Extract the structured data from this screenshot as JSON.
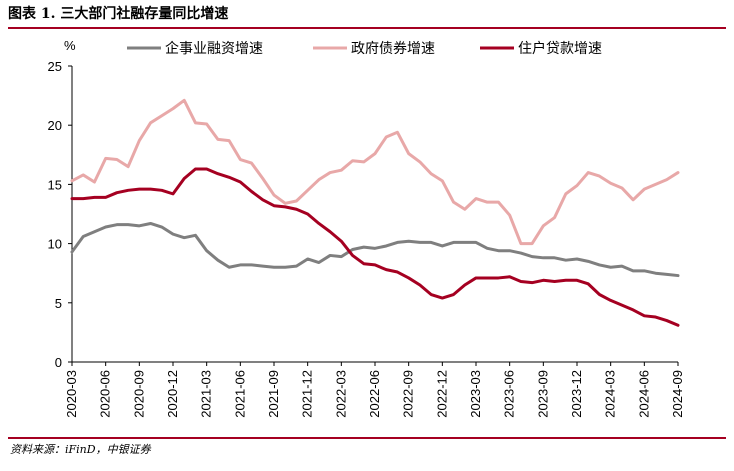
{
  "header": {
    "title": "图表 1. 三大部门社融存量同比增速"
  },
  "footer": {
    "source": "资料来源：iFinD，中银证券"
  },
  "chart_data": {
    "type": "line",
    "title": "图表 1. 三大部门社融存量同比增速",
    "ylabel": "%",
    "ylim": [
      0,
      25
    ],
    "yticks": [
      0,
      5,
      10,
      15,
      20,
      25
    ],
    "grid": false,
    "legend_position": "top",
    "x": [
      "2020-03",
      "2020-04",
      "2020-05",
      "2020-06",
      "2020-07",
      "2020-08",
      "2020-09",
      "2020-10",
      "2020-11",
      "2020-12",
      "2021-01",
      "2021-02",
      "2021-03",
      "2021-04",
      "2021-05",
      "2021-06",
      "2021-07",
      "2021-08",
      "2021-09",
      "2021-10",
      "2021-11",
      "2021-12",
      "2022-01",
      "2022-02",
      "2022-03",
      "2022-04",
      "2022-05",
      "2022-06",
      "2022-07",
      "2022-08",
      "2022-09",
      "2022-10",
      "2022-11",
      "2022-12",
      "2023-01",
      "2023-02",
      "2023-03",
      "2023-04",
      "2023-05",
      "2023-06",
      "2023-07",
      "2023-08",
      "2023-09",
      "2023-10",
      "2023-11",
      "2023-12",
      "2024-01",
      "2024-02",
      "2024-03",
      "2024-04",
      "2024-05",
      "2024-06",
      "2024-07",
      "2024-08",
      "2024-09"
    ],
    "xtick_labels": [
      "2020-03",
      "2020-06",
      "2020-09",
      "2020-12",
      "2021-03",
      "2021-06",
      "2021-09",
      "2021-12",
      "2022-03",
      "2022-06",
      "2022-09",
      "2022-12",
      "2023-03",
      "2023-06",
      "2023-09",
      "2023-12",
      "2024-03",
      "2024-06",
      "2024-09"
    ],
    "series": [
      {
        "name": "企事业融资增速",
        "color": "#7f7f7f",
        "values": [
          9.3,
          10.6,
          11.0,
          11.4,
          11.6,
          11.6,
          11.5,
          11.7,
          11.4,
          10.8,
          10.5,
          10.7,
          9.4,
          8.6,
          8.0,
          8.2,
          8.2,
          8.1,
          8.0,
          8.0,
          8.1,
          8.7,
          8.4,
          9.0,
          8.9,
          9.5,
          9.7,
          9.6,
          9.8,
          10.1,
          10.2,
          10.1,
          10.1,
          9.8,
          10.1,
          10.1,
          10.1,
          9.6,
          9.4,
          9.4,
          9.2,
          8.9,
          8.8,
          8.8,
          8.6,
          8.7,
          8.5,
          8.2,
          8.0,
          8.1,
          7.7,
          7.7,
          7.5,
          7.4,
          7.3
        ]
      },
      {
        "name": "政府债券增速",
        "color": "#e8a8a8",
        "values": [
          15.3,
          15.8,
          15.2,
          17.2,
          17.1,
          16.5,
          18.7,
          20.2,
          20.8,
          21.4,
          22.1,
          20.2,
          20.1,
          18.8,
          18.7,
          17.1,
          16.8,
          15.5,
          14.1,
          13.4,
          13.6,
          14.5,
          15.4,
          16.0,
          16.2,
          17.0,
          16.9,
          17.6,
          19.0,
          19.4,
          17.6,
          16.9,
          15.9,
          15.3,
          13.5,
          12.9,
          13.8,
          13.5,
          13.5,
          12.4,
          10.0,
          10.0,
          11.5,
          12.2,
          14.2,
          14.9,
          16.0,
          15.7,
          15.1,
          14.7,
          13.7,
          14.6,
          15.0,
          15.4,
          16.0
        ]
      },
      {
        "name": "住户贷款增速",
        "color": "#a50021",
        "values": [
          13.8,
          13.8,
          13.9,
          13.9,
          14.3,
          14.5,
          14.6,
          14.6,
          14.5,
          14.2,
          15.5,
          16.3,
          16.3,
          15.9,
          15.6,
          15.2,
          14.4,
          13.7,
          13.2,
          13.1,
          12.9,
          12.5,
          11.7,
          11.0,
          10.2,
          9.0,
          8.3,
          8.2,
          7.8,
          7.6,
          7.1,
          6.5,
          5.7,
          5.4,
          5.7,
          6.5,
          7.1,
          7.1,
          7.1,
          7.2,
          6.8,
          6.7,
          6.9,
          6.8,
          6.9,
          6.9,
          6.6,
          5.7,
          5.2,
          4.8,
          4.4,
          3.9,
          3.8,
          3.5,
          3.1
        ]
      }
    ]
  }
}
